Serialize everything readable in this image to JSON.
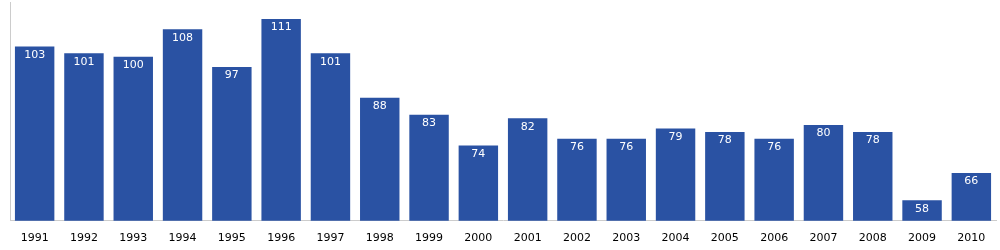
{
  "chart_data": {
    "type": "bar",
    "categories": [
      "1991",
      "1992",
      "1993",
      "1994",
      "1995",
      "1996",
      "1997",
      "1998",
      "1999",
      "2000",
      "2001",
      "2002",
      "2003",
      "2004",
      "2005",
      "2006",
      "2007",
      "2008",
      "2009",
      "2010"
    ],
    "values": [
      103,
      101,
      100,
      108,
      97,
      111,
      101,
      88,
      83,
      74,
      82,
      76,
      76,
      79,
      78,
      76,
      80,
      78,
      58,
      66
    ],
    "color": "#2a52a3",
    "ylim": [
      52,
      116
    ],
    "grid": false,
    "data_labels": true,
    "tick_labels": "x"
  }
}
